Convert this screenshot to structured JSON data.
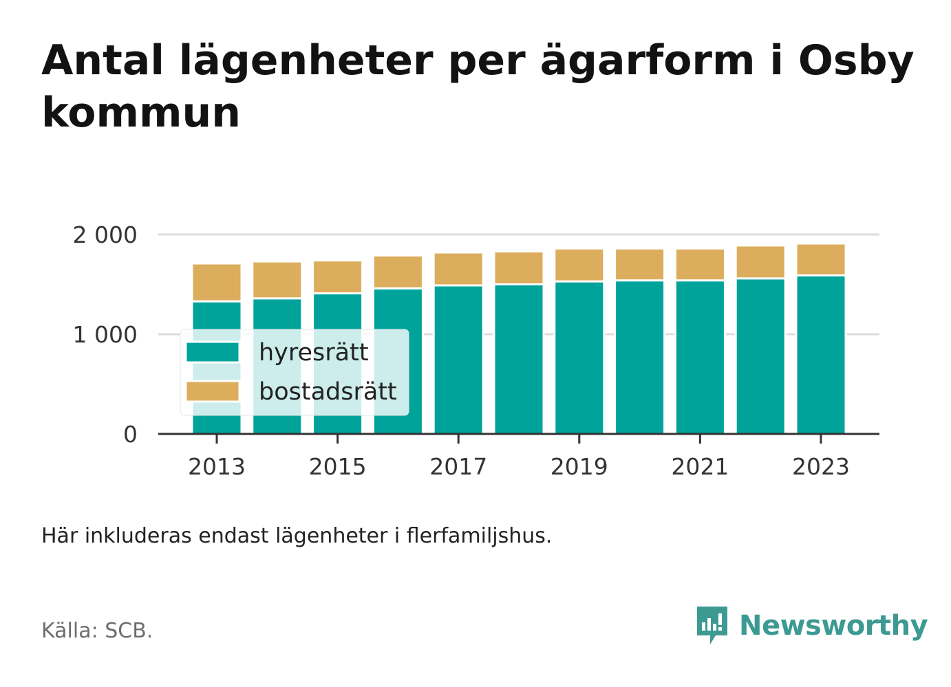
{
  "title": "Antal lägenheter per ägarform i Osby kommun",
  "note": "Här inkluderas endast lägenheter i flerfamiljshus.",
  "source": "Källa: SCB.",
  "brand": {
    "name": "Newsworthy",
    "icon": "newsworthy-logo-icon",
    "color": "#3c9a92"
  },
  "chart_data": {
    "type": "bar",
    "stacked": true,
    "title": "Antal lägenheter per ägarform i Osby kommun",
    "xlabel": "",
    "ylabel": "",
    "categories": [
      "2013",
      "2014",
      "2015",
      "2016",
      "2017",
      "2018",
      "2019",
      "2020",
      "2021",
      "2022",
      "2023"
    ],
    "x_tick_labels": [
      "2013",
      "2015",
      "2017",
      "2019",
      "2021",
      "2023"
    ],
    "y_ticks": [
      0,
      1000,
      2000
    ],
    "y_tick_labels": [
      "0",
      "1 000",
      "2 000"
    ],
    "ylim": [
      0,
      2000
    ],
    "grid": true,
    "legend_position": "inside-left",
    "series": [
      {
        "name": "hyresrätt",
        "color": "#00a39a",
        "values": [
          1330,
          1360,
          1410,
          1460,
          1490,
          1500,
          1530,
          1540,
          1540,
          1560,
          1590
        ]
      },
      {
        "name": "bostadsrätt",
        "color": "#dbad5c",
        "values": [
          380,
          370,
          330,
          330,
          330,
          330,
          330,
          320,
          320,
          330,
          320
        ]
      }
    ]
  }
}
